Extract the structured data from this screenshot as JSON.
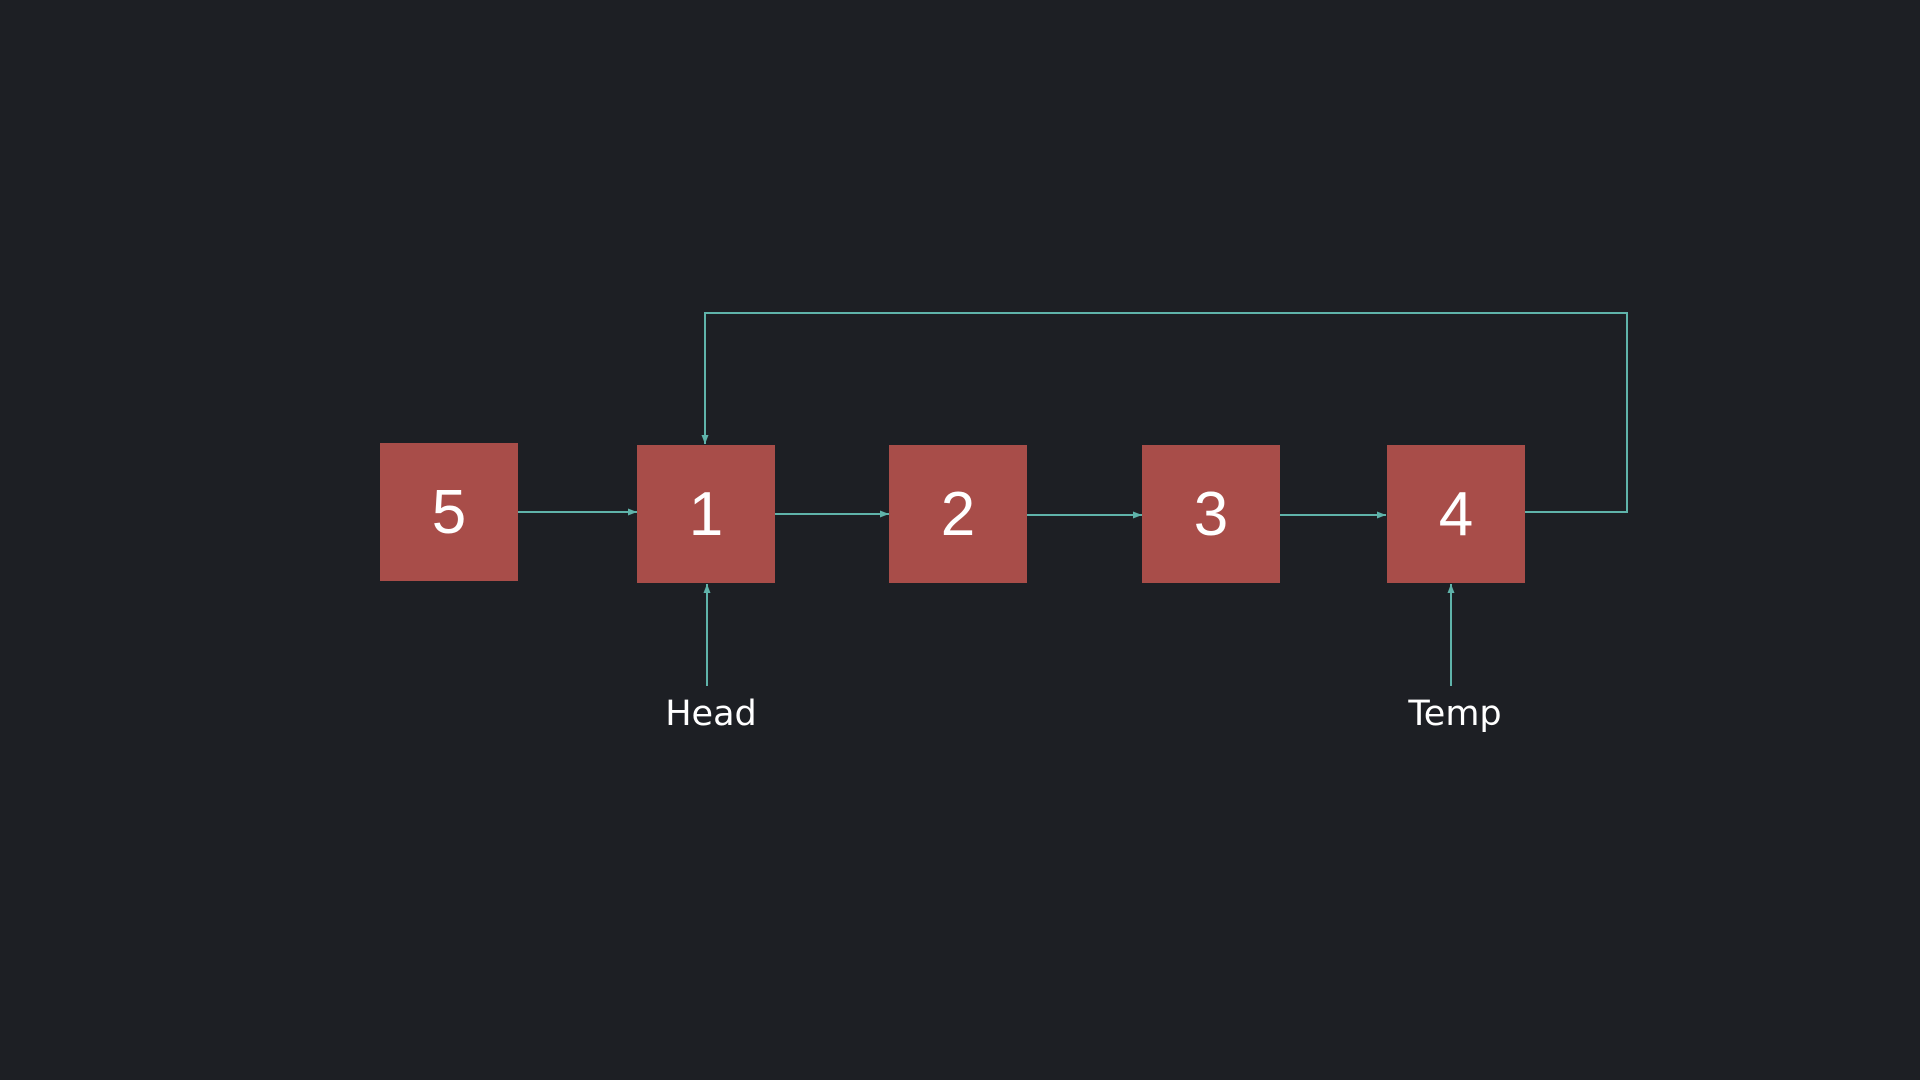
{
  "colors": {
    "background": "#1d1f24",
    "node_fill": "#a84d49",
    "arrow": "#5fb3aa",
    "text": "#ffffff"
  },
  "nodes": [
    {
      "value": "5"
    },
    {
      "value": "1"
    },
    {
      "value": "2"
    },
    {
      "value": "3"
    },
    {
      "value": "4"
    }
  ],
  "links": [
    {
      "from": "5",
      "to": "1"
    },
    {
      "from": "1",
      "to": "2"
    },
    {
      "from": "2",
      "to": "3"
    },
    {
      "from": "3",
      "to": "4"
    },
    {
      "from": "4",
      "to": "1"
    }
  ],
  "pointers": {
    "head": {
      "label": "Head",
      "target": "1"
    },
    "temp": {
      "label": "Temp",
      "target": "4"
    }
  }
}
